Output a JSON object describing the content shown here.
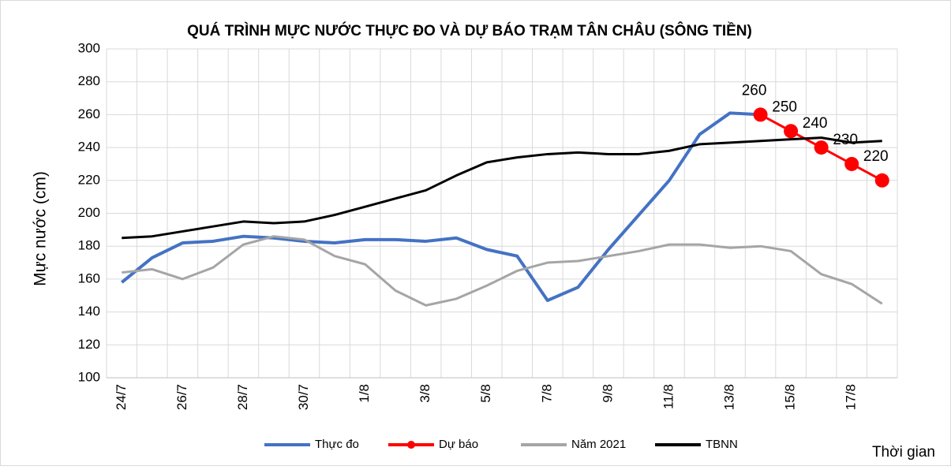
{
  "chart_data": {
    "type": "line",
    "title": "QUÁ TRÌNH MỰC NƯỚC THỰC ĐO VÀ DỰ BÁO TRẠM TÂN CHÂU (SÔNG TIỀN)",
    "xlabel": "Thời gian",
    "ylabel": "Mực nước (cm)",
    "categories": [
      "24/7",
      null,
      "26/7",
      null,
      "28/7",
      null,
      "30/7",
      null,
      "1/8",
      null,
      "3/8",
      null,
      "5/8",
      null,
      "7/8",
      null,
      "9/8",
      null,
      "11/8",
      null,
      "13/8",
      null,
      "15/8",
      null,
      "17/8",
      null
    ],
    "ylim": [
      100,
      300
    ],
    "yticks": [
      100,
      120,
      140,
      160,
      180,
      200,
      220,
      240,
      260,
      280,
      300
    ],
    "grid": true,
    "legend": "bottom",
    "series": [
      {
        "name": "Thực đo",
        "color": "#4472c4",
        "values": [
          158,
          173,
          182,
          183,
          186,
          185,
          183,
          182,
          184,
          184,
          183,
          185,
          178,
          174,
          147,
          155,
          178,
          199,
          220,
          248,
          261,
          260,
          null,
          null,
          null,
          null
        ]
      },
      {
        "name": "Dự báo",
        "color": "#ff0000",
        "markers": true,
        "data_labels": true,
        "values": [
          null,
          null,
          null,
          null,
          null,
          null,
          null,
          null,
          null,
          null,
          null,
          null,
          null,
          null,
          null,
          null,
          null,
          null,
          null,
          null,
          null,
          260,
          250,
          240,
          230,
          220
        ]
      },
      {
        "name": "Năm 2021",
        "color": "#a5a5a5",
        "values": [
          164,
          166,
          160,
          167,
          181,
          186,
          184,
          174,
          169,
          153,
          144,
          148,
          156,
          165,
          170,
          171,
          174,
          177,
          181,
          181,
          179,
          180,
          177,
          163,
          157,
          145
        ]
      },
      {
        "name": "TBNN",
        "color": "#000000",
        "values": [
          185,
          186,
          189,
          192,
          195,
          194,
          195,
          199,
          204,
          209,
          214,
          223,
          231,
          234,
          236,
          237,
          236,
          236,
          238,
          242,
          243,
          244,
          245,
          246,
          243,
          244
        ]
      }
    ]
  }
}
